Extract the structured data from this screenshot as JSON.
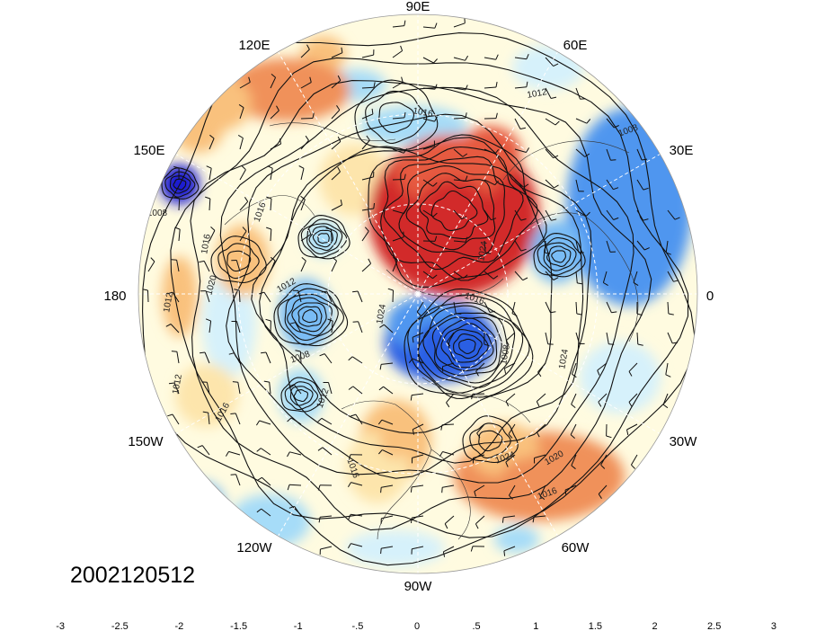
{
  "map": {
    "projection": "north-polar-stereographic",
    "datetime": "2002120512",
    "longitude_labels": [
      "90E",
      "60E",
      "30E",
      "0",
      "30W",
      "60W",
      "90W",
      "120W",
      "150W",
      "180",
      "150E",
      "120E"
    ],
    "contour_labels": [
      "1012",
      "1016",
      "1008",
      "1008",
      "1016",
      "1016",
      "1020",
      "1012",
      "1012",
      "1016",
      "1012",
      "1008",
      "1024",
      "1016",
      "1024",
      "1020",
      "1016",
      "1024",
      "1008",
      "1012",
      "1016",
      "1024"
    ],
    "colorbar": {
      "tick_labels": [
        "-3",
        "-2.5",
        "-2",
        "-1.5",
        "-1",
        "-.5",
        "0",
        ".5",
        "1",
        "1.5",
        "2",
        "2.5",
        "3"
      ],
      "colors": [
        "#1a1ad0",
        "#2c5ee4",
        "#4f96ef",
        "#79bcf5",
        "#a6dcf8",
        "#d6f1fb",
        "#fffbe0",
        "#fde5ac",
        "#f9c17d",
        "#f0915a",
        "#e65a3f",
        "#d22a2a",
        "#a3111c"
      ]
    },
    "anomaly_regions": [
      {
        "name": "siberia-warm",
        "value": 2.5
      },
      {
        "name": "greenland-cold",
        "value": -2.5
      },
      {
        "name": "europe-cold",
        "value": -2
      },
      {
        "name": "kamchatka-cold",
        "value": -3
      },
      {
        "name": "atlantic-warm",
        "value": 1.5
      },
      {
        "name": "us-warm",
        "value": 1
      },
      {
        "name": "asia-warm",
        "value": 1.5
      },
      {
        "name": "pacific-cold",
        "value": -1.5
      }
    ]
  }
}
